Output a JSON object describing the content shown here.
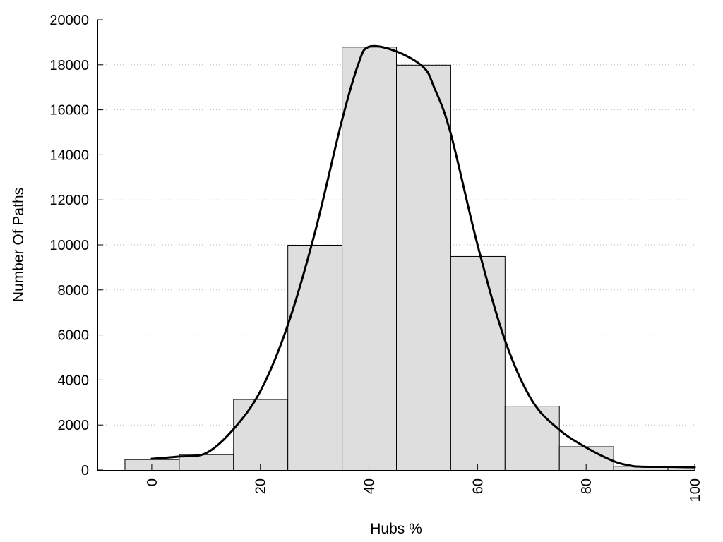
{
  "chart_data": {
    "type": "bar",
    "title": "",
    "xlabel": "Hubs %",
    "ylabel": "Number Of Paths",
    "xlim": [
      -10,
      100
    ],
    "ylim": [
      0,
      20000
    ],
    "x_ticks": [
      0,
      20,
      40,
      60,
      80,
      100
    ],
    "y_ticks": [
      0,
      2000,
      4000,
      6000,
      8000,
      10000,
      12000,
      14000,
      16000,
      18000,
      20000
    ],
    "grid": "horizontal dotted",
    "legend": "none",
    "bar_color": "#dedede",
    "bar_edge_color": "#000000",
    "line_color": "#000000",
    "bins": [
      {
        "from": -5,
        "to": 5,
        "value": 480
      },
      {
        "from": 5,
        "to": 15,
        "value": 700
      },
      {
        "from": 15,
        "to": 25,
        "value": 3150
      },
      {
        "from": 25,
        "to": 35,
        "value": 10000
      },
      {
        "from": 35,
        "to": 45,
        "value": 18800
      },
      {
        "from": 45,
        "to": 55,
        "value": 18000
      },
      {
        "from": 55,
        "to": 65,
        "value": 9500
      },
      {
        "from": 65,
        "to": 75,
        "value": 2850
      },
      {
        "from": 75,
        "to": 85,
        "value": 1050
      },
      {
        "from": 85,
        "to": 95,
        "value": 180
      },
      {
        "from": 95,
        "to": 105,
        "value": 130
      }
    ],
    "series": [
      {
        "type": "line",
        "x": [
          0,
          5,
          10,
          15,
          20,
          25,
          30,
          35,
          38,
          40,
          45,
          50,
          52,
          55,
          60,
          65,
          70,
          75,
          80,
          85,
          88,
          90,
          95,
          100
        ],
        "y": [
          500,
          600,
          750,
          1800,
          3500,
          6400,
          10500,
          15500,
          18000,
          18800,
          18600,
          17900,
          17000,
          15000,
          10000,
          5800,
          3100,
          1800,
          1000,
          400,
          200,
          150,
          140,
          120
        ]
      }
    ]
  }
}
